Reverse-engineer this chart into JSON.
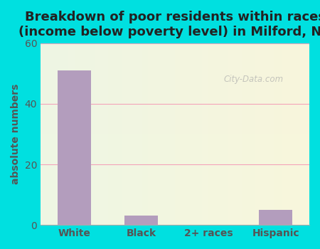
{
  "title": "Breakdown of poor residents within races\n(income below poverty level) in Milford, NY",
  "categories": [
    "White",
    "Black",
    "2+ races",
    "Hispanic"
  ],
  "values": [
    51,
    3,
    0,
    5
  ],
  "bar_color": "#b39dbd",
  "ylabel": "absolute numbers",
  "ylim": [
    0,
    60
  ],
  "yticks": [
    0,
    20,
    40,
    60
  ],
  "bg_outer": "#00e0e0",
  "grid_color": "#f48fb1",
  "title_fontsize": 13,
  "axis_label_fontsize": 10,
  "tick_fontsize": 10,
  "watermark": "City-Data.com"
}
